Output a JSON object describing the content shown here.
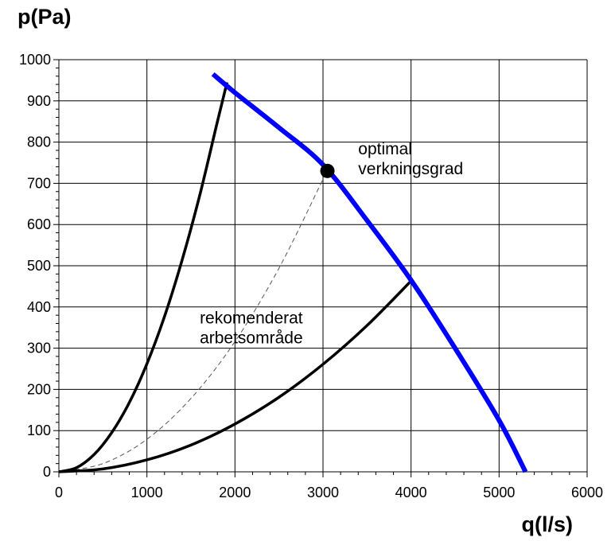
{
  "chart_data": {
    "type": "line",
    "title": "",
    "xlabel": "q(l/s)",
    "ylabel": "p(Pa)",
    "xlim": [
      0,
      6000
    ],
    "ylim": [
      0,
      1000
    ],
    "x_ticks": [
      0,
      1000,
      2000,
      3000,
      4000,
      5000,
      6000
    ],
    "y_ticks": [
      0,
      100,
      200,
      300,
      400,
      500,
      600,
      700,
      800,
      900,
      1000
    ],
    "grid": true,
    "series": [
      {
        "role": "fan-curve",
        "color": "#0000ff",
        "x": [
          1750,
          2000,
          2500,
          3000,
          3500,
          4000,
          4500,
          5000,
          5300
        ],
        "y": [
          965,
          920,
          835,
          745,
          610,
          465,
          300,
          125,
          0
        ]
      },
      {
        "role": "upper-system-curve",
        "color": "#000000",
        "x": [
          0,
          200,
          400,
          600,
          800,
          1000,
          1200,
          1400,
          1600,
          1800,
          1910
        ],
        "y": [
          0,
          10,
          42,
          95,
          168,
          262,
          377,
          514,
          671,
          849,
          945
        ]
      },
      {
        "role": "lower-system-curve",
        "color": "#000000",
        "x": [
          0,
          500,
          1000,
          1500,
          2000,
          2500,
          3000,
          3500,
          4000
        ],
        "y": [
          0,
          7,
          29,
          65,
          116,
          181,
          261,
          355,
          463
        ]
      },
      {
        "role": "optimal-system-curve",
        "color": "#555555",
        "style": "dashed",
        "x": [
          0,
          500,
          1000,
          1500,
          2000,
          2500,
          3000
        ],
        "y": [
          0,
          20,
          79,
          178,
          316,
          494,
          710
        ]
      }
    ],
    "points": [
      {
        "role": "optimal-point",
        "x": 3050,
        "y": 730
      }
    ],
    "annotations": [
      {
        "lines": [
          "optimal",
          "verkningsgrad"
        ],
        "x": 3400,
        "y": 770
      },
      {
        "lines": [
          "rekomenderat",
          "arbetsområde"
        ],
        "x": 1600,
        "y": 360
      }
    ]
  }
}
